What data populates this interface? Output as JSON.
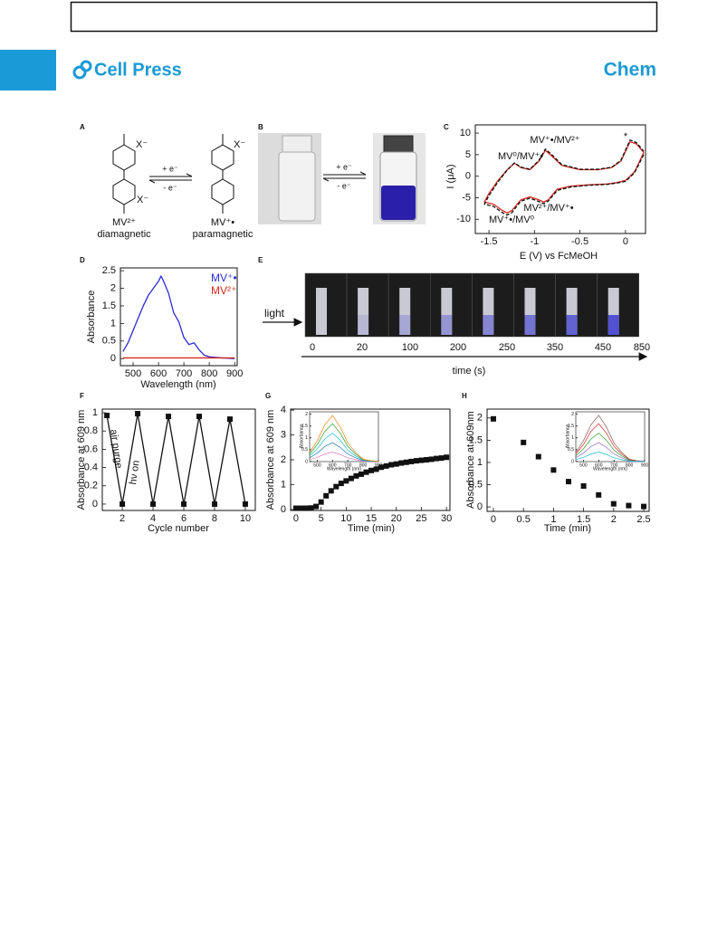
{
  "header": {
    "logo": "Cell Press",
    "journal": "Chem"
  },
  "figure": {
    "panel_labels": [
      "A",
      "B",
      "C",
      "D",
      "E",
      "F",
      "G",
      "H"
    ],
    "A": {
      "counterion": "X⁻",
      "forward": "+ e⁻",
      "backward": "- e⁻",
      "left_name": "MV²⁺",
      "left_state": "diamagnetic",
      "right_name": "MV⁺•",
      "right_state": "paramagnetic"
    },
    "B": {
      "forward": "+ e⁻",
      "backward": "- e⁻"
    },
    "E": {
      "light": "light",
      "times": [
        "0",
        "20",
        "100",
        "200",
        "250",
        "350",
        "450",
        "850"
      ],
      "axis_label": "time (s)"
    }
  },
  "chart_data": [
    {
      "type": "line",
      "xlabel": "E (V) vs FcMeOH",
      "ylabel": "I (μA)",
      "annotations": [
        "MV⁺•/MV²⁺",
        "MV⁰/MV⁺•",
        "*",
        "MV²⁺/MV⁺•",
        "MV⁺•/MV⁰"
      ],
      "x": [
        0.2,
        0.1,
        0.0,
        -0.1,
        -0.2,
        -0.4,
        -0.6,
        -0.75,
        -0.85,
        -0.9,
        -0.95,
        -1.05,
        -1.15,
        -1.25,
        -1.3,
        -1.35,
        -1.45,
        -1.55,
        -1.5,
        -1.4,
        -1.3,
        -1.22,
        -1.15,
        -1.05,
        -0.95,
        -0.88,
        -0.8,
        -0.7,
        -0.5,
        -0.3,
        -0.15,
        -0.05,
        0.05,
        0.12,
        0.2
      ],
      "series": [
        {
          "color": "#d62a1e",
          "values": [
            5.5,
            1,
            -1,
            -1.5,
            -1.8,
            -2,
            -2.3,
            -3,
            -5.5,
            -6,
            -5.5,
            -4.8,
            -5.5,
            -8,
            -8.5,
            -8,
            -6.5,
            -6,
            -4,
            -1,
            1.5,
            3,
            2,
            1.5,
            3.5,
            6,
            4.5,
            2.5,
            1.5,
            1.5,
            2,
            3.5,
            8,
            7.5,
            5.5
          ]
        },
        {
          "color": "#111111",
          "dashed": true,
          "values": [
            5,
            0.8,
            -1.2,
            -1.6,
            -1.9,
            -2.1,
            -2.5,
            -3.3,
            -5.8,
            -6.4,
            -5.9,
            -5.1,
            -5.8,
            -8.5,
            -9,
            -8.5,
            -7,
            -6.5,
            -4.5,
            -1.3,
            1.4,
            3.1,
            2.1,
            1.6,
            3.7,
            6.3,
            4.8,
            2.7,
            1.6,
            1.6,
            2.1,
            3.7,
            8.4,
            7.8,
            5.8
          ]
        }
      ],
      "xlim": [
        -1.65,
        0.22
      ],
      "ylim": [
        -13.3,
        11.9
      ],
      "xticks": [
        -1.5,
        -1,
        -0.5,
        0
      ],
      "yticks": [
        -10,
        -5,
        0,
        5,
        10
      ]
    },
    {
      "type": "line",
      "xlabel": "Wavelength (nm)",
      "ylabel": "Absorbance",
      "x": [
        460,
        480,
        500,
        520,
        540,
        560,
        580,
        600,
        610,
        620,
        640,
        660,
        680,
        700,
        720,
        740,
        760,
        780,
        800,
        850,
        900
      ],
      "series": [
        {
          "name": "MV⁺•",
          "color": "#2b2bd6",
          "values": [
            0.2,
            0.45,
            0.8,
            1.15,
            1.5,
            1.8,
            2.0,
            2.2,
            2.35,
            2.2,
            1.85,
            1.3,
            1.05,
            0.6,
            0.4,
            0.45,
            0.25,
            0.1,
            0.05,
            0.02,
            0
          ]
        },
        {
          "name": "MV²⁺",
          "color": "#d62a1e",
          "values": [
            0.02,
            0.02,
            0.02,
            0.02,
            0.02,
            0.02,
            0.02,
            0.02,
            0.02,
            0.02,
            0.02,
            0.02,
            0.02,
            0.02,
            0.02,
            0.02,
            0.02,
            0.02,
            0.02,
            0.02,
            0.02
          ]
        }
      ],
      "xlim": [
        450,
        910
      ],
      "ylim": [
        -0.2,
        2.58
      ],
      "xticks": [
        500,
        600,
        700,
        800,
        900
      ],
      "yticks": [
        0,
        0.5,
        1,
        1.5,
        2,
        2.5
      ]
    },
    {
      "type": "line",
      "marker": "square",
      "xlabel": "Cycle number",
      "ylabel": "Absorbance at 609 nm",
      "annotations": [
        "air purge",
        "hν on"
      ],
      "x": [
        1,
        2,
        3,
        4,
        5,
        6,
        7,
        8,
        9,
        10
      ],
      "series": [
        {
          "color": "#111111",
          "values": [
            0.97,
            0,
            0.99,
            0,
            0.96,
            0,
            0.96,
            0,
            0.93,
            0
          ]
        }
      ],
      "xlim": [
        0.7,
        10.65
      ],
      "ylim": [
        -0.07,
        1.04
      ],
      "xticks": [
        2,
        4,
        6,
        8,
        10
      ],
      "yticks": [
        0,
        0.2,
        0.4,
        0.6,
        0.8,
        1
      ]
    },
    {
      "type": "scatter",
      "marker": "square",
      "xlabel": "Time (min)",
      "ylabel": "Absorbance at 609 nm",
      "x": [
        0,
        1,
        2,
        3,
        4,
        5,
        6,
        7,
        8,
        9,
        10,
        11,
        12,
        13,
        14,
        15,
        16,
        17,
        18,
        19,
        20,
        21,
        22,
        23,
        24,
        25,
        26,
        27,
        28,
        29,
        30
      ],
      "series": [
        {
          "color": "#111111",
          "values": [
            0.05,
            0.05,
            0.05,
            0.06,
            0.12,
            0.3,
            0.55,
            0.75,
            0.92,
            1.05,
            1.15,
            1.25,
            1.35,
            1.42,
            1.5,
            1.57,
            1.62,
            1.7,
            1.75,
            1.8,
            1.83,
            1.87,
            1.9,
            1.93,
            1.96,
            1.98,
            2.0,
            2.02,
            2.05,
            2.07,
            2.1
          ]
        }
      ],
      "xlim": [
        -1.08,
        30.7
      ],
      "ylim": [
        -0.04,
        4.04
      ],
      "xticks": [
        0,
        5,
        10,
        15,
        20,
        25,
        30
      ],
      "yticks": [
        0,
        1,
        2,
        3,
        4
      ]
    },
    {
      "type": "line",
      "xlabel": "Wavelength (nm)",
      "ylabel": "Absorbance",
      "x": [
        450,
        500,
        550,
        600,
        650,
        700,
        750,
        800,
        850,
        900
      ],
      "series": [
        {
          "color": "#e377c2",
          "values": [
            0.08,
            0.18,
            0.32,
            0.4,
            0.3,
            0.16,
            0.08,
            0.02,
            0.01,
            0
          ]
        },
        {
          "color": "#1f77b4",
          "values": [
            0.16,
            0.36,
            0.64,
            0.8,
            0.6,
            0.32,
            0.16,
            0.04,
            0.02,
            0.01
          ]
        },
        {
          "color": "#17becf",
          "values": [
            0.24,
            0.54,
            0.96,
            1.2,
            0.9,
            0.48,
            0.24,
            0.06,
            0.02,
            0.01
          ]
        },
        {
          "color": "#2ca02c",
          "values": [
            0.32,
            0.72,
            1.28,
            1.6,
            1.2,
            0.64,
            0.32,
            0.08,
            0.03,
            0.02
          ]
        },
        {
          "color": "#ff7f0e",
          "values": [
            0.39,
            0.88,
            1.56,
            1.95,
            1.46,
            0.78,
            0.39,
            0.1,
            0.04,
            0.02
          ]
        }
      ],
      "xlim": [
        450,
        900
      ],
      "ylim": [
        0,
        2.1
      ],
      "xticks": [
        500,
        600,
        700,
        800,
        900
      ],
      "yticks": [
        0,
        0.5,
        1,
        1.5,
        2
      ]
    },
    {
      "type": "scatter",
      "marker": "square",
      "xlabel": "Time (min)",
      "ylabel": "Absorbance at 609nm",
      "x": [
        0,
        0.5,
        0.75,
        1,
        1.25,
        1.5,
        1.75,
        2,
        2.25,
        2.5
      ],
      "series": [
        {
          "color": "#111111",
          "values": [
            1.98,
            1.45,
            1.13,
            0.83,
            0.57,
            0.47,
            0.27,
            0.07,
            0.03,
            0.01
          ]
        }
      ],
      "xlim": [
        -0.105,
        2.59
      ],
      "ylim": [
        -0.1,
        2.2
      ],
      "xticks": [
        0,
        0.5,
        1,
        1.5,
        2,
        2.5
      ],
      "yticks": [
        0,
        0.5,
        1,
        1.5,
        2
      ]
    },
    {
      "type": "line",
      "xlabel": "Wavelength (nm)",
      "ylabel": "Absorbance",
      "x": [
        450,
        500,
        550,
        600,
        650,
        700,
        750,
        800,
        850,
        900
      ],
      "series": [
        {
          "color": "#8c564b",
          "values": [
            0.39,
            0.88,
            1.56,
            1.95,
            1.46,
            0.78,
            0.39,
            0.1,
            0.04,
            0.02
          ]
        },
        {
          "color": "#d62728",
          "values": [
            0.32,
            0.72,
            1.28,
            1.6,
            1.2,
            0.64,
            0.32,
            0.08,
            0.03,
            0.02
          ]
        },
        {
          "color": "#2ca02c",
          "values": [
            0.24,
            0.54,
            0.96,
            1.2,
            0.9,
            0.48,
            0.24,
            0.06,
            0.02,
            0.01
          ]
        },
        {
          "color": "#9467bd",
          "values": [
            0.16,
            0.36,
            0.64,
            0.8,
            0.6,
            0.32,
            0.16,
            0.04,
            0.02,
            0.01
          ]
        },
        {
          "color": "#17becf",
          "values": [
            0.08,
            0.18,
            0.32,
            0.4,
            0.3,
            0.16,
            0.08,
            0.02,
            0.01,
            0
          ]
        }
      ],
      "xlim": [
        450,
        900
      ],
      "ylim": [
        0,
        2.1
      ],
      "xticks": [
        500,
        600,
        700,
        800,
        900
      ],
      "yticks": [
        0,
        0.5,
        1,
        1.5,
        2
      ]
    }
  ]
}
